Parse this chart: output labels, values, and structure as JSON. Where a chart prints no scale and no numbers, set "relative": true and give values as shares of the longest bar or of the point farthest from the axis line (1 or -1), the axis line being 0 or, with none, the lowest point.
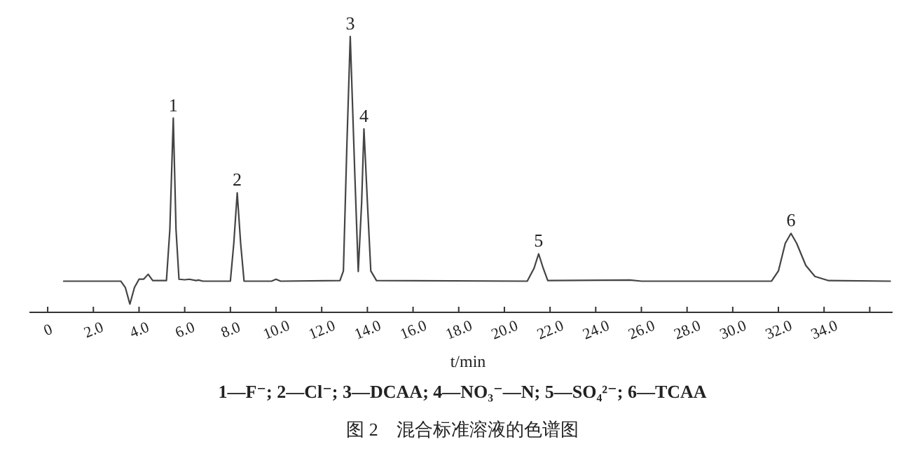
{
  "chart_data": {
    "type": "line",
    "relative": true,
    "xlabel": "t/min",
    "xlim": [
      -0.8,
      37
    ],
    "xticks": [
      0,
      {
        "value": 2,
        "label": "2.0"
      },
      {
        "value": 4,
        "label": "4.0"
      },
      {
        "value": 6,
        "label": "6.0"
      },
      {
        "value": 8,
        "label": "8.0"
      },
      {
        "value": 10,
        "label": "10.0"
      },
      {
        "value": 12,
        "label": "12.0"
      },
      {
        "value": 14,
        "label": "14.0"
      },
      {
        "value": 16,
        "label": "16.0"
      },
      {
        "value": 18,
        "label": "18.0"
      },
      {
        "value": 20,
        "label": "20.0"
      },
      {
        "value": 22,
        "label": "22.0"
      },
      {
        "value": 24,
        "label": "24.0"
      },
      {
        "value": 26,
        "label": "26.0"
      },
      {
        "value": 28,
        "label": "28.0"
      },
      {
        "value": 30,
        "label": "30.0"
      },
      {
        "value": 32,
        "label": "32.0"
      },
      {
        "value": 34,
        "label": "34.0"
      },
      {
        "value": 36,
        "label": null
      }
    ],
    "series": [
      {
        "color": "#444444",
        "x": [
          0.7,
          3.2,
          3.4,
          3.6,
          3.8,
          4.0,
          4.2,
          4.4,
          4.6,
          5.2,
          5.35,
          5.5,
          5.62,
          5.75,
          6.0,
          6.2,
          6.5,
          6.6,
          6.8,
          8.0,
          8.15,
          8.3,
          8.45,
          8.6,
          9.8,
          10.0,
          10.2,
          12.8,
          12.95,
          13.1,
          13.25,
          13.45,
          13.6,
          13.75,
          13.85,
          14.0,
          14.15,
          14.4,
          21.0,
          21.3,
          21.5,
          21.7,
          21.9,
          25.5,
          26.0,
          31.7,
          32.0,
          32.3,
          32.55,
          32.8,
          33.2,
          33.6,
          34.2,
          36.9
        ],
        "values": [
          0.113,
          0.113,
          0.09,
          0.03,
          0.09,
          0.12,
          0.12,
          0.138,
          0.115,
          0.115,
          0.3,
          0.704,
          0.3,
          0.12,
          0.118,
          0.12,
          0.115,
          0.117,
          0.113,
          0.113,
          0.25,
          0.433,
          0.25,
          0.113,
          0.113,
          0.12,
          0.113,
          0.115,
          0.15,
          0.6,
          1.0,
          0.5,
          0.148,
          0.4,
          0.665,
          0.4,
          0.15,
          0.115,
          0.113,
          0.16,
          0.212,
          0.16,
          0.115,
          0.117,
          0.113,
          0.113,
          0.15,
          0.25,
          0.286,
          0.25,
          0.17,
          0.13,
          0.115,
          0.113
        ]
      }
    ],
    "annotations": [
      {
        "text": "1",
        "x": 5.5,
        "y": 0.704
      },
      {
        "text": "2",
        "x": 8.3,
        "y": 0.433
      },
      {
        "text": "3",
        "x": 13.25,
        "y": 1.0
      },
      {
        "text": "4",
        "x": 13.85,
        "y": 0.665
      },
      {
        "text": "5",
        "x": 21.5,
        "y": 0.212
      },
      {
        "text": "6",
        "x": 32.55,
        "y": 0.286
      },
      "1—F⁻; 2—Cl⁻; 3—DCAA; 4—NO₃⁻—N; 5—SO₄²⁻; 6—TCAA",
      "图 2　混合标准溶液的色谱图"
    ]
  }
}
